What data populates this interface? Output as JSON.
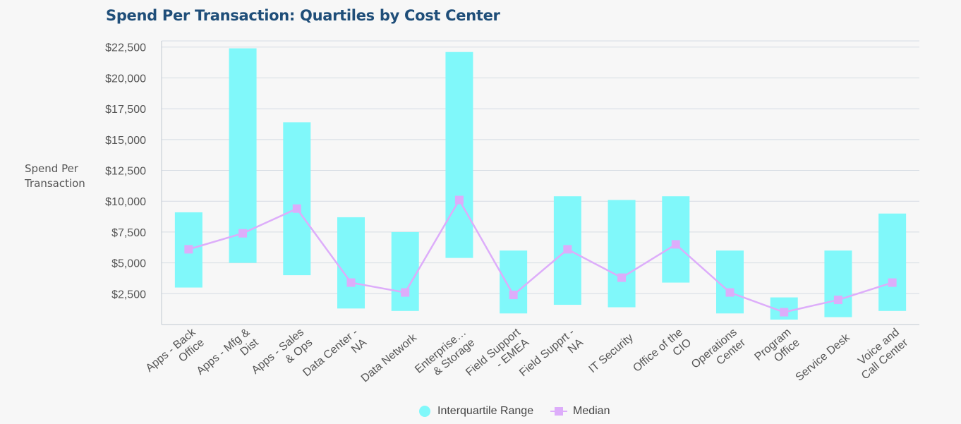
{
  "chart_data": {
    "type": "bar",
    "title": "Spend Per Transaction: Quartiles by Cost Center",
    "ylabel": "Spend Per Transaction",
    "ylim": [
      0,
      23000
    ],
    "yticks": [
      2500,
      5000,
      7500,
      10000,
      12500,
      15000,
      17500,
      20000,
      22500
    ],
    "ytick_labels": [
      "$2,500",
      "$5,000",
      "$7,500",
      "$10,000",
      "$12,500",
      "$15,000",
      "$17,500",
      "$20,000",
      "$22,500"
    ],
    "grid": true,
    "legend_position": "bottom-center",
    "categories": [
      [
        "Apps - Back",
        "Office"
      ],
      [
        "Apps - Mfg &",
        "Dist"
      ],
      [
        "Apps - Sales",
        "& Ops"
      ],
      [
        "Data Center -",
        "NA"
      ],
      [
        "Data Network"
      ],
      [
        "Enterprise…",
        "& Storage"
      ],
      [
        "Field Support",
        "- EMEA"
      ],
      [
        "Field Supprt -",
        "NA"
      ],
      [
        "IT Security"
      ],
      [
        "Office of the",
        "CIO"
      ],
      [
        "Operations",
        "Center"
      ],
      [
        "Program",
        "Office"
      ],
      [
        "Service Desk"
      ],
      [
        "Voice and",
        "Call Center"
      ]
    ],
    "series": [
      {
        "name": "Interquartile Range",
        "type": "range-bar",
        "color": "#80f8fa",
        "low": [
          3000,
          5000,
          4000,
          1300,
          1100,
          5400,
          900,
          1600,
          1400,
          3400,
          900,
          400,
          600,
          1100
        ],
        "high": [
          9100,
          22400,
          16400,
          8700,
          7500,
          22100,
          6000,
          10400,
          10100,
          10400,
          6000,
          2200,
          6000,
          9000
        ]
      },
      {
        "name": "Median",
        "type": "line",
        "color": "#ddadfa",
        "values": [
          6100,
          7400,
          9400,
          3400,
          2600,
          10100,
          2400,
          6100,
          3800,
          6500,
          2600,
          1000,
          2000,
          3400
        ]
      }
    ]
  },
  "legend": {
    "items": [
      {
        "label": "Interquartile Range"
      },
      {
        "label": "Median"
      }
    ]
  }
}
